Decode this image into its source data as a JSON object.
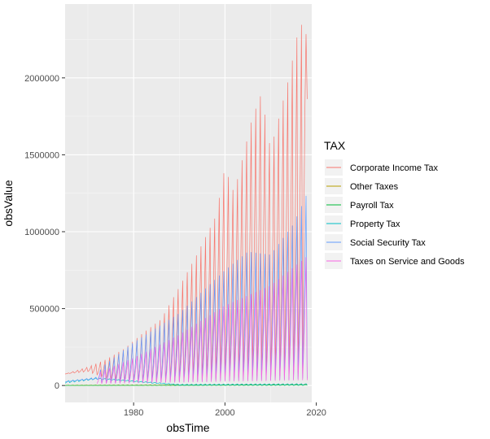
{
  "chart_data": {
    "type": "line",
    "xlabel": "obsTime",
    "ylabel": "obsValue",
    "xlim": [
      1965,
      2019
    ],
    "ylim": [
      -110000,
      2480000
    ],
    "x_ticks": [
      1980,
      2000,
      2020
    ],
    "y_ticks": [
      0,
      500000,
      1000000,
      1500000,
      2000000
    ],
    "grid": true,
    "legend": {
      "title": "TAX",
      "position": "right"
    },
    "series": [
      {
        "name": "Corporate Income Tax",
        "color": "#F8766D",
        "x": [
          1965,
          1970,
          1974,
          1978,
          1982,
          1986,
          1990,
          1994,
          1998,
          2000,
          2002,
          2006,
          2008,
          2010,
          2014,
          2016,
          2017,
          2018
        ],
        "high": [
          75000,
          120000,
          170000,
          240000,
          340000,
          430000,
          640000,
          860000,
          1100000,
          1420000,
          1250000,
          1740000,
          1900000,
          1530000,
          2000000,
          2300000,
          2360000,
          2260000
        ],
        "low": [
          75000,
          90000,
          40000,
          20000,
          15000,
          12000,
          10000,
          10000,
          10000,
          10000,
          10000,
          10000,
          10000,
          10000,
          10000,
          10000,
          10000,
          1850000
        ]
      },
      {
        "name": "Other Taxes",
        "color": "#B79F00",
        "x": [
          1965,
          1990,
          2018
        ],
        "high": [
          2000,
          5000,
          10000
        ],
        "low": [
          0,
          1000,
          3000
        ]
      },
      {
        "name": "Payroll Tax",
        "color": "#00BA38",
        "x": [
          1965,
          1990,
          2018
        ],
        "high": [
          1000,
          2000,
          5000
        ],
        "low": [
          0,
          500,
          1000
        ]
      },
      {
        "name": "Property Tax",
        "color": "#00BFC4",
        "x": [
          1965,
          1972,
          1990,
          2018
        ],
        "high": [
          30000,
          50000,
          8000,
          12000
        ],
        "low": [
          15000,
          40000,
          2000,
          3000
        ]
      },
      {
        "name": "Social Security Tax",
        "color": "#619CFF",
        "x": [
          1965,
          1972,
          1973,
          1980,
          1990,
          2000,
          2005,
          2010,
          2015,
          2018
        ],
        "high": [
          25000,
          55000,
          120000,
          280000,
          470000,
          750000,
          870000,
          850000,
          1050000,
          1250000
        ],
        "low": [
          25000,
          40000,
          10000,
          10000,
          10000,
          10000,
          10000,
          10000,
          10000,
          10000
        ]
      },
      {
        "name": "Taxes on Service and Goods",
        "color": "#F564E3",
        "x": [
          1972,
          1980,
          1990,
          2000,
          2010,
          2018
        ],
        "high": [
          80000,
          180000,
          330000,
          520000,
          650000,
          840000
        ],
        "low": [
          10000,
          10000,
          10000,
          10000,
          10000,
          10000
        ]
      }
    ]
  }
}
